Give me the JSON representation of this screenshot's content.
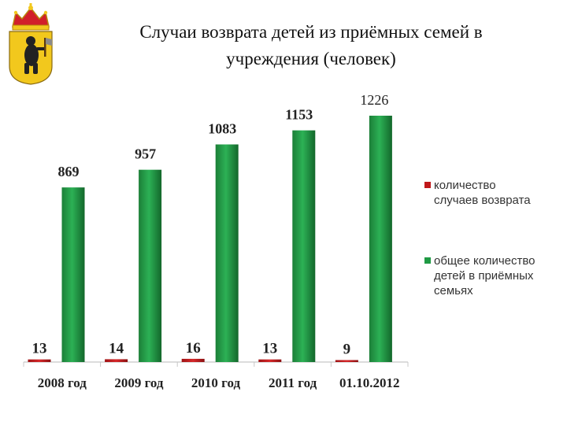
{
  "header": {
    "title_line1": "Случаи возврата детей из приёмных семей в",
    "title_line2": "учреждения (человек)"
  },
  "colors": {
    "return_series": "#c0181a",
    "foster_series": "#1f9a44",
    "coat_yellow": "#f2c81d",
    "coat_red": "#d11f2a"
  },
  "chart_data": {
    "type": "bar",
    "categories": [
      "2008 год",
      "2009 год",
      "2010 год",
      "2011 год",
      "01.10.2012"
    ],
    "series": [
      {
        "name": "количество случаев возврата",
        "values": [
          13,
          14,
          16,
          13,
          9
        ],
        "color": "#c0181a"
      },
      {
        "name": "общее количество детей в приёмных семьях",
        "values": [
          869,
          957,
          1083,
          1153,
          1226
        ],
        "color": "#1f9a44"
      }
    ],
    "legend_lines": [
      [
        "количество",
        "случаев возврата"
      ],
      [
        "общее количество",
        "детей в приёмных",
        "семьях"
      ]
    ],
    "ylim": [
      0,
      1300
    ],
    "legend": "right",
    "grid": false
  }
}
